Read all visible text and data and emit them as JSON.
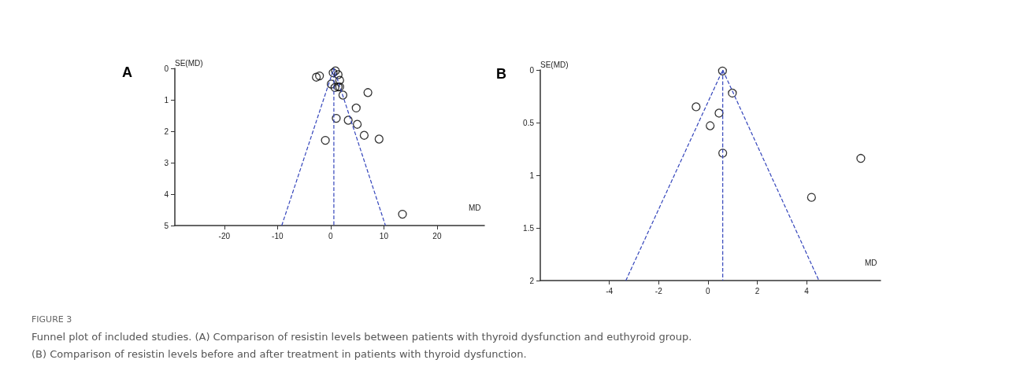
{
  "chart_data": [
    {
      "type": "scatter",
      "title": "A",
      "xlabel": "MD",
      "ylabel": "SE(MD)",
      "marker": "circle",
      "grid": false,
      "xlim": [
        -29.3,
        28.9
      ],
      "xticks": [
        -20,
        -10,
        0,
        10,
        20
      ],
      "ylim": [
        5,
        0
      ],
      "yticks": [
        0,
        1,
        2,
        3,
        4,
        5
      ],
      "annotations": [
        "FIGURE 3",
        "Funnel plot of included studies. (A) Comparison of resistin levels between patients with thyroid dysfunction and euthyroid group.",
        "(B) Comparison of resistin levels before and after treatment in patients with thyroid dysfunction."
      ],
      "series": [
        {
          "color": "#000000",
          "x": [
            0.9,
            0.46,
            1.4,
            -2.1,
            -2.7,
            1.7,
            0.1,
            0.8,
            1.4,
            1.7,
            7.0,
            2.3,
            4.8,
            1.05,
            3.3,
            5.0,
            6.3,
            -1.0,
            9.1,
            13.5
          ],
          "values": [
            0.08,
            0.14,
            0.2,
            0.24,
            0.28,
            0.38,
            0.5,
            0.61,
            0.59,
            0.59,
            0.77,
            0.85,
            1.26,
            1.59,
            1.65,
            1.78,
            2.13,
            2.29,
            2.25,
            4.64
          ]
        },
        {
          "type": "line",
          "color": "#3344bb",
          "line_style": "dashed",
          "marker": "none",
          "x": [
            -9.2,
            0.6,
            10.3
          ],
          "values": [
            5,
            0,
            5
          ]
        },
        {
          "type": "line",
          "color": "#3344bb",
          "line_style": "dashed",
          "marker": "none",
          "x": [
            0.6,
            0.6
          ],
          "values": [
            0,
            5
          ]
        }
      ]
    },
    {
      "type": "scatter",
      "title": "B",
      "xlabel": "MD",
      "ylabel": "SE(MD)",
      "marker": "circle",
      "grid": false,
      "xlim": [
        -6.8,
        7.0
      ],
      "xticks": [
        -4,
        -2,
        0,
        2,
        4
      ],
      "ylim": [
        2,
        0
      ],
      "yticks": [
        0,
        0.5,
        1,
        1.5,
        2
      ],
      "series": [
        {
          "color": "#000000",
          "x": [
            0.59,
            0.99,
            -0.48,
            0.45,
            0.09,
            0.6,
            6.2,
            4.2
          ],
          "values": [
            0.01,
            0.22,
            0.35,
            0.41,
            0.53,
            0.79,
            0.84,
            1.21
          ]
        },
        {
          "type": "line",
          "color": "#3344bb",
          "line_style": "dashed",
          "marker": "none",
          "x": [
            -3.33,
            0.6,
            4.5
          ],
          "values": [
            2,
            0,
            2
          ]
        },
        {
          "type": "line",
          "color": "#3344bb",
          "line_style": "dashed",
          "marker": "none",
          "x": [
            0.6,
            0.6
          ],
          "values": [
            0,
            2
          ]
        }
      ]
    }
  ]
}
